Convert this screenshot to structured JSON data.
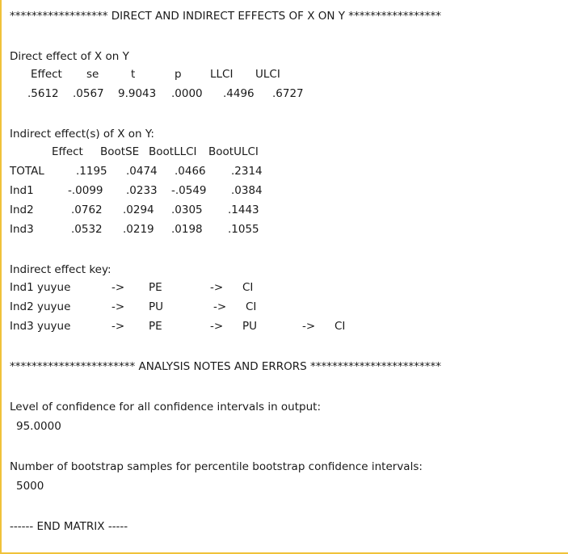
{
  "output": {
    "header_effects": "****************** DIRECT AND INDIRECT EFFECTS OF X ON Y *****************",
    "direct_title": "Direct effect of X on Y",
    "direct_headers": [
      "Effect",
      "se",
      "t",
      "p",
      "LLCI",
      "ULCI"
    ],
    "direct_values": [
      ".5612",
      ".0567",
      "9.9043",
      ".0000",
      ".4496",
      ".6727"
    ],
    "indirect_title": "Indirect effect(s) of X on Y:",
    "indirect_headers": [
      "Effect",
      "BootSE",
      "BootLLCI",
      "BootULCI"
    ],
    "indirect_rows": [
      {
        "label": "TOTAL",
        "values": [
          ".1195",
          ".0474",
          ".0466",
          ".2314"
        ]
      },
      {
        "label": "Ind1",
        "values": [
          "-.0099",
          ".0233",
          "-.0549",
          ".0384"
        ]
      },
      {
        "label": "Ind2",
        "values": [
          ".0762",
          ".0294",
          ".0305",
          ".1443"
        ]
      },
      {
        "label": "Ind3",
        "values": [
          ".0532",
          ".0219",
          ".0198",
          ".1055"
        ]
      }
    ],
    "key_title": "Indirect effect key:",
    "key_rows": [
      [
        "Ind1 yuyue",
        "->",
        "PE",
        "->",
        "CI"
      ],
      [
        "Ind2 yuyue",
        "->",
        "PU",
        "->",
        "CI"
      ],
      [
        "Ind3 yuyue",
        "->",
        "PE",
        "->",
        "PU",
        "->",
        "CI"
      ]
    ],
    "header_notes": "*********************** ANALYSIS NOTES AND ERRORS ************************",
    "confidence_label": "Level of confidence for all confidence intervals in output:",
    "confidence_value": "95.0000",
    "bootstrap_label": "Number of bootstrap samples for percentile bootstrap confidence intervals:",
    "bootstrap_value": "5000",
    "end_matrix": "------ END MATRIX -----"
  }
}
